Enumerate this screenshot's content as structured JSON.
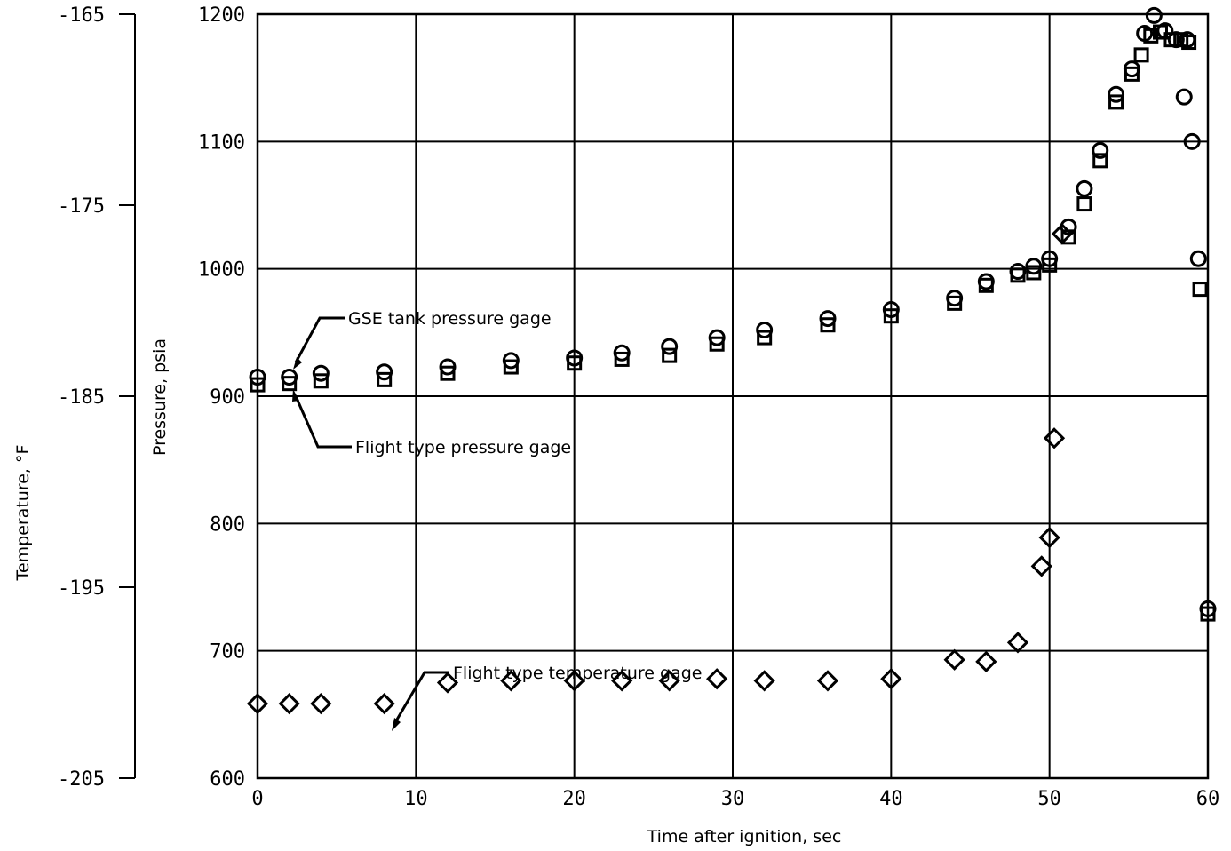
{
  "chart_data": {
    "type": "scatter",
    "title": "",
    "xlabel": "Time after ignition, sec",
    "ylabel": "Pressure, psia",
    "y2label": "Temperature, °F",
    "xlim": [
      0,
      60
    ],
    "ylim": [
      600,
      1200
    ],
    "y2lim": [
      -205,
      -165
    ],
    "x_ticks": [
      "0",
      "10",
      "20",
      "30",
      "40",
      "50",
      "60"
    ],
    "y_ticks": [
      "600",
      "700",
      "800",
      "900",
      "1000",
      "1100",
      "1200"
    ],
    "y2_ticks": [
      "-205",
      "-195",
      "-185",
      "-175",
      "-165"
    ],
    "grid": true,
    "series": [
      {
        "name": "GSE tank pressure gage",
        "marker": "circle",
        "axis": "pressure",
        "x": [
          0,
          2,
          4,
          8,
          12,
          16,
          20,
          23,
          26,
          29,
          32,
          36,
          40,
          44,
          46,
          48,
          49,
          50,
          51.2,
          52.2,
          53.2,
          54.2,
          55.2,
          56,
          56.6,
          57.3,
          58,
          58.5,
          58.7,
          59,
          59.4,
          60
        ],
        "y": [
          915,
          915,
          918,
          919,
          923,
          928,
          930,
          934,
          939,
          946,
          952,
          961,
          968,
          977,
          990,
          998,
          1002,
          1008,
          1033,
          1063,
          1093,
          1137,
          1157,
          1185,
          1199,
          1187,
          1180,
          1135,
          1180,
          1100,
          1008,
          733
        ]
      },
      {
        "name": "Flight type pressure gage",
        "marker": "square",
        "axis": "pressure",
        "x": [
          0,
          2,
          4,
          8,
          12,
          16,
          20,
          23,
          26,
          29,
          32,
          36,
          40,
          44,
          46,
          48,
          49,
          50,
          51.2,
          52.2,
          53.2,
          54.2,
          55.2,
          55.8,
          56.4,
          57,
          57.7,
          58.3,
          58.8,
          59.5,
          60
        ],
        "y": [
          909,
          910,
          912,
          913,
          918,
          923,
          926,
          929,
          932,
          941,
          946,
          956,
          963,
          973,
          987,
          995,
          997,
          1003,
          1025,
          1051,
          1085,
          1131,
          1153,
          1168,
          1183,
          1186,
          1180,
          1180,
          1178,
          984,
          729
        ]
      },
      {
        "name": "Flight type temperature gage",
        "marker": "diamond",
        "axis": "temperature",
        "x": [
          0,
          2,
          4,
          8,
          12,
          16,
          20,
          23,
          26,
          29,
          32,
          36,
          40,
          44,
          46,
          48,
          49.5,
          50,
          50.3,
          50.8
        ],
        "y": [
          -201.1,
          -201.1,
          -201.1,
          -201.1,
          -200.0,
          -199.9,
          -199.9,
          -199.9,
          -199.9,
          -199.8,
          -199.9,
          -199.9,
          -199.8,
          -198.8,
          -198.9,
          -197.9,
          -193.9,
          -192.4,
          -187.2,
          -176.5
        ]
      }
    ],
    "annotations": [
      "GSE tank pressure gage",
      "Flight type pressure gage",
      "Flight type temperature gage"
    ]
  }
}
